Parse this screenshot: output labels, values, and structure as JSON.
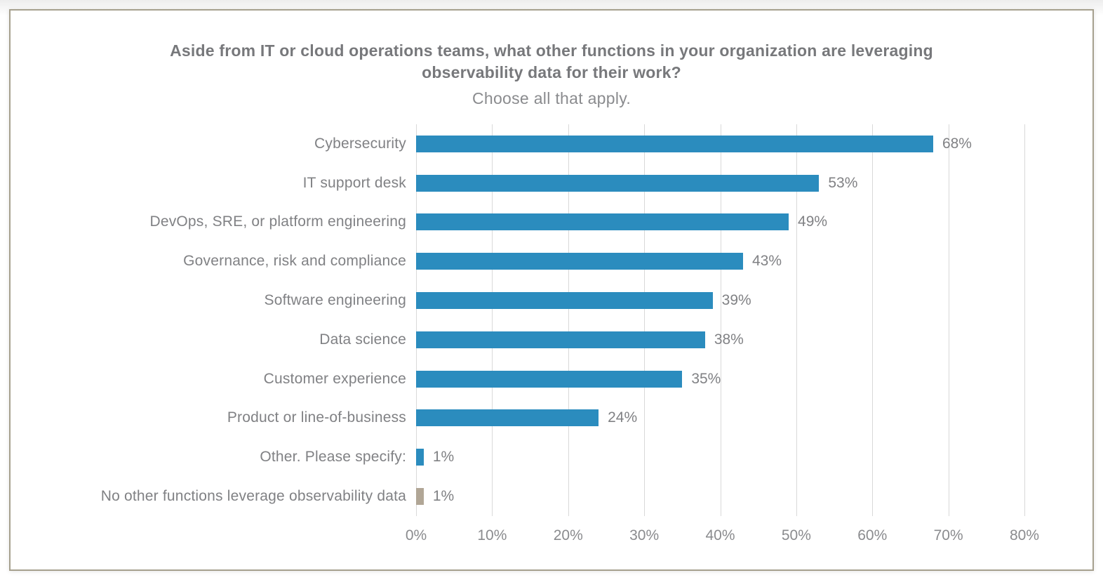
{
  "chart_data": {
    "type": "bar",
    "orientation": "horizontal",
    "title": "Aside from IT or cloud operations teams, what other functions in your organization are leveraging observability data for their work?",
    "subtitle": "Choose all that apply.",
    "categories": [
      "Cybersecurity",
      "IT support desk",
      "DevOps, SRE, or platform engineering",
      "Governance, risk and compliance",
      "Software engineering",
      "Data science",
      "Customer experience",
      "Product or line-of-business",
      "Other. Please specify:",
      "No other functions leverage observability data"
    ],
    "values": [
      68,
      53,
      49,
      43,
      39,
      38,
      35,
      24,
      1,
      1
    ],
    "value_labels": [
      "68%",
      "53%",
      "49%",
      "43%",
      "39%",
      "38%",
      "35%",
      "24%",
      "1%",
      "1%"
    ],
    "bar_colors": [
      "#2b8cbe",
      "#2b8cbe",
      "#2b8cbe",
      "#2b8cbe",
      "#2b8cbe",
      "#2b8cbe",
      "#2b8cbe",
      "#2b8cbe",
      "#2b8cbe",
      "#b1a696"
    ],
    "xlim": [
      0,
      80
    ],
    "x_tick_labels": [
      "0%",
      "10%",
      "20%",
      "30%",
      "40%",
      "50%",
      "60%",
      "70%",
      "80%"
    ],
    "x_tick_values": [
      0,
      10,
      20,
      30,
      40,
      50,
      60,
      70,
      80
    ],
    "grid": true,
    "legend": false,
    "colors": {
      "bar_primary": "#2b8cbe",
      "bar_neutral": "#b1a696",
      "grid_line": "#d9d9d9",
      "label_text": "#808184",
      "title_text": "#77787b",
      "card_border": "#a6a08e"
    }
  }
}
